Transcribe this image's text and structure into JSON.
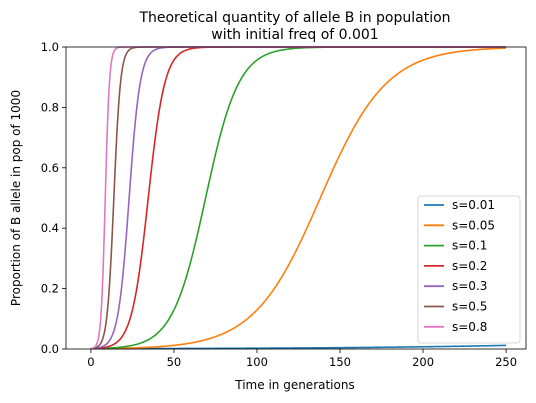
{
  "chart_data": {
    "type": "line",
    "title": "Theoretical quantity of allele B in population",
    "subtitle": "with initial freq of 0.001",
    "xlabel": "Time in generations",
    "ylabel": "Proportion of B allele in pop of 1000",
    "xlim": [
      -15,
      262
    ],
    "ylim": [
      0,
      1
    ],
    "xticks": [
      "0",
      "50",
      "100",
      "150",
      "200",
      "250"
    ],
    "yticks": [
      "0.0",
      "0.2",
      "0.4",
      "0.6",
      "0.8",
      "1.0"
    ],
    "grid": false,
    "legend_position": "lower-right",
    "p0": 0.001,
    "generations": 250,
    "series": [
      {
        "name": "s=0.01",
        "s": 0.01,
        "color": "#1f77b4"
      },
      {
        "name": "s=0.05",
        "s": 0.05,
        "color": "#ff7f0e"
      },
      {
        "name": "s=0.1",
        "s": 0.1,
        "color": "#2ca02c"
      },
      {
        "name": "s=0.2",
        "s": 0.2,
        "color": "#d62728"
      },
      {
        "name": "s=0.3",
        "s": 0.3,
        "color": "#9467bd"
      },
      {
        "name": "s=0.5",
        "s": 0.5,
        "color": "#8c564b"
      },
      {
        "name": "s=0.8",
        "s": 0.8,
        "color": "#e377c2"
      }
    ]
  }
}
